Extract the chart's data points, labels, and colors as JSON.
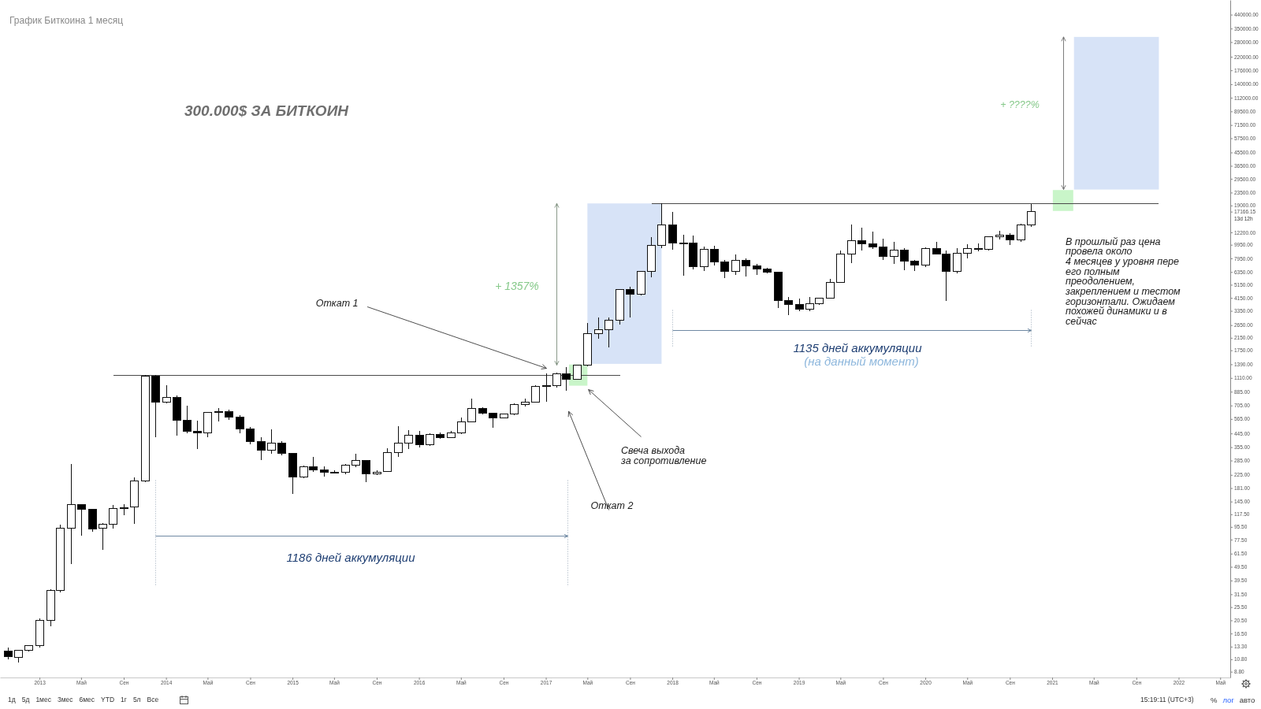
{
  "chart_data": {
    "type": "candlestick",
    "title": "График Биткоина 1 месяц",
    "subtitle": "300.000$ ЗА БИТКОИН",
    "x": [
      "2012-10",
      "2012-11",
      "2012-12",
      "2013-01",
      "2013-02",
      "2013-03",
      "2013-04",
      "2013-05",
      "2013-06",
      "2013-07",
      "2013-08",
      "2013-09",
      "2013-10",
      "2013-11",
      "2013-12",
      "2014-01",
      "2014-02",
      "2014-03",
      "2014-04",
      "2014-05",
      "2014-06",
      "2014-07",
      "2014-08",
      "2014-09",
      "2014-10",
      "2014-11",
      "2014-12",
      "2015-01",
      "2015-02",
      "2015-03",
      "2015-04",
      "2015-05",
      "2015-06",
      "2015-07",
      "2015-08",
      "2015-09",
      "2015-10",
      "2015-11",
      "2015-12",
      "2016-01",
      "2016-02",
      "2016-03",
      "2016-04",
      "2016-05",
      "2016-06",
      "2016-07",
      "2016-08",
      "2016-09",
      "2016-10",
      "2016-11",
      "2016-12",
      "2017-01",
      "2017-02",
      "2017-03",
      "2017-04",
      "2017-05",
      "2017-06",
      "2017-07",
      "2017-08",
      "2017-09",
      "2017-10",
      "2017-11",
      "2017-12",
      "2018-01",
      "2018-02",
      "2018-03",
      "2018-04",
      "2018-05",
      "2018-06",
      "2018-07",
      "2018-08",
      "2018-09",
      "2018-10",
      "2018-11",
      "2018-12",
      "2019-01",
      "2019-02",
      "2019-03",
      "2019-04",
      "2019-05",
      "2019-06",
      "2019-07",
      "2019-08",
      "2019-09",
      "2019-10",
      "2019-11",
      "2019-12",
      "2020-01",
      "2020-02",
      "2020-03",
      "2020-04",
      "2020-05",
      "2020-06",
      "2020-07",
      "2020-08",
      "2020-09",
      "2020-10",
      "2020-11"
    ],
    "ohlc": [
      [
        12.3,
        13.1,
        10.8,
        11.3
      ],
      [
        11.2,
        12.6,
        10.2,
        12.5
      ],
      [
        12.5,
        13.6,
        12.2,
        13.6
      ],
      [
        13.6,
        21.3,
        13.1,
        20.5
      ],
      [
        20.5,
        34.2,
        18.7,
        33.5
      ],
      [
        33.5,
        98.7,
        32.4,
        93.8
      ],
      [
        93.8,
        270,
        51.6,
        138
      ],
      [
        138,
        139,
        83,
        128
      ],
      [
        128,
        129,
        87.8,
        92.5
      ],
      [
        93,
        102,
        65.5,
        99.6
      ],
      [
        100,
        137,
        92.5,
        130
      ],
      [
        131,
        138,
        116,
        130
      ],
      [
        132,
        215,
        100,
        204
      ],
      [
        204,
        1163,
        199,
        1150
      ],
      [
        1150,
        1163,
        417,
        745
      ],
      [
        745,
        990,
        735,
        802
      ],
      [
        802,
        829,
        430,
        550
      ],
      [
        550,
        700,
        445,
        459
      ],
      [
        459,
        550,
        346,
        447
      ],
      [
        447,
        630,
        416,
        627
      ],
      [
        627,
        677,
        540,
        640
      ],
      [
        640,
        660,
        557,
        582
      ],
      [
        582,
        600,
        445,
        479
      ],
      [
        479,
        496,
        370,
        391
      ],
      [
        388,
        417,
        288,
        339
      ],
      [
        339,
        474,
        320,
        378
      ],
      [
        378,
        390,
        311,
        321
      ],
      [
        321,
        323,
        164,
        218
      ],
      [
        217,
        263,
        213,
        256
      ],
      [
        256,
        301,
        237,
        245
      ],
      [
        245,
        260,
        218,
        236
      ],
      [
        236,
        241,
        229,
        234
      ],
      [
        234,
        270,
        226,
        264
      ],
      [
        264,
        317,
        256,
        285
      ],
      [
        285,
        286,
        199,
        230
      ],
      [
        230,
        244,
        225,
        236
      ],
      [
        237,
        350,
        235,
        324
      ],
      [
        324,
        500,
        301,
        380
      ],
      [
        380,
        471,
        345,
        430
      ],
      [
        430,
        463,
        354,
        372
      ],
      [
        372,
        449,
        362,
        437
      ],
      [
        437,
        455,
        405,
        418
      ],
      [
        418,
        463,
        414,
        449
      ],
      [
        449,
        576,
        441,
        537
      ],
      [
        537,
        787,
        534,
        671
      ],
      [
        671,
        687,
        606,
        621
      ],
      [
        621,
        624,
        490,
        576
      ],
      [
        576,
        617,
        574,
        610
      ],
      [
        610,
        728,
        605,
        712
      ],
      [
        712,
        787,
        695,
        747
      ],
      [
        747,
        980,
        740,
        970
      ],
      [
        970,
        1189,
        754,
        980
      ],
      [
        980,
        1214,
        946,
        1189
      ],
      [
        1189,
        1323,
        896,
        1089
      ],
      [
        1089,
        1370,
        1080,
        1365
      ],
      [
        1365,
        2761,
        1350,
        2294
      ],
      [
        2294,
        2985,
        2128,
        2447
      ],
      [
        2447,
        2985,
        1830,
        2860
      ],
      [
        2860,
        4760,
        2680,
        4744
      ],
      [
        4744,
        4955,
        3013,
        4385
      ],
      [
        4385,
        6450,
        4300,
        6415
      ],
      [
        6415,
        11250,
        5800,
        9877
      ],
      [
        9877,
        19700,
        9400,
        13850
      ],
      [
        13850,
        17140,
        9180,
        10200
      ],
      [
        10200,
        11750,
        5940,
        10300
      ],
      [
        10300,
        11620,
        6610,
        6935
      ],
      [
        6935,
        9620,
        6470,
        9190
      ],
      [
        9190,
        9810,
        7050,
        7527
      ],
      [
        7527,
        7770,
        5760,
        6415
      ],
      [
        6415,
        8430,
        6080,
        7730
      ],
      [
        7730,
        7960,
        5900,
        7050
      ],
      [
        7050,
        7300,
        6080,
        6645
      ],
      [
        6645,
        6840,
        6210,
        6337
      ],
      [
        6337,
        6400,
        3500,
        3987
      ],
      [
        3987,
        4220,
        3140,
        3736
      ],
      [
        3736,
        4110,
        3340,
        3430
      ],
      [
        3430,
        4220,
        3340,
        3785
      ],
      [
        3785,
        4150,
        3700,
        4111
      ],
      [
        4111,
        5640,
        4080,
        5331
      ],
      [
        5331,
        9075,
        5330,
        8570
      ],
      [
        8570,
        13800,
        7400,
        10690
      ],
      [
        10690,
        13110,
        9075,
        10100
      ],
      [
        10100,
        12280,
        9320,
        9590
      ],
      [
        9590,
        10925,
        7725,
        8245
      ],
      [
        8245,
        10420,
        7240,
        9075
      ],
      [
        9075,
        9370,
        6560,
        7568
      ],
      [
        7568,
        7770,
        6470,
        7145
      ],
      [
        7145,
        9500,
        6900,
        9350
      ],
      [
        9350,
        10470,
        8540,
        8570
      ],
      [
        8570,
        9075,
        3937,
        6415
      ],
      [
        6415,
        9370,
        6200,
        8610
      ],
      [
        8610,
        10070,
        8000,
        9386
      ],
      [
        9386,
        10200,
        8900,
        9200
      ],
      [
        9200,
        11360,
        9050,
        11360
      ],
      [
        11360,
        12470,
        10880,
        11660
      ],
      [
        11660,
        12030,
        9960,
        10790
      ],
      [
        10790,
        14060,
        10500,
        13800
      ],
      [
        13800,
        19500,
        13400,
        17166.15
      ]
    ],
    "colors": [
      "#000000",
      "#ffffff",
      "#ffffff",
      "#ffffff",
      "#ffffff",
      "#ffffff",
      "#ffffff",
      "#000000",
      "#000000",
      "#ffffff",
      "#ffffff",
      "#000000",
      "#ffffff",
      "#ffffff",
      "#000000",
      "#ffffff",
      "#000000",
      "#000000",
      "#000000",
      "#ffffff",
      "#ffffff",
      "#000000",
      "#000000",
      "#000000",
      "#000000",
      "#ffffff",
      "#000000",
      "#000000",
      "#ffffff",
      "#000000",
      "#000000",
      "#000000",
      "#ffffff",
      "#ffffff",
      "#000000",
      "#ffffff",
      "#ffffff",
      "#ffffff",
      "#ffffff",
      "#000000",
      "#ffffff",
      "#000000",
      "#ffffff",
      "#ffffff",
      "#ffffff",
      "#000000",
      "#000000",
      "#ffffff",
      "#ffffff",
      "#ffffff",
      "#ffffff",
      "#ffffff",
      "#ffffff",
      "#000000",
      "#ffffff",
      "#ffffff",
      "#ffffff",
      "#ffffff",
      "#ffffff",
      "#000000",
      "#ffffff",
      "#ffffff",
      "#ffffff",
      "#000000",
      "#ffffff",
      "#000000",
      "#ffffff",
      "#000000",
      "#000000",
      "#ffffff",
      "#000000",
      "#000000",
      "#000000",
      "#000000",
      "#000000",
      "#000000",
      "#ffffff",
      "#ffffff",
      "#ffffff",
      "#ffffff",
      "#ffffff",
      "#000000",
      "#000000",
      "#000000",
      "#ffffff",
      "#000000",
      "#000000",
      "#ffffff",
      "#000000",
      "#000000",
      "#ffffff",
      "#ffffff",
      "#000000",
      "#ffffff",
      "#ffffff",
      "#000000",
      "#ffffff",
      "#ffffff"
    ],
    "xlim": [
      "2012-09-09",
      "2022-05-30"
    ],
    "ylim": [
      8,
      560000
    ],
    "log": "y",
    "xticks": [
      {
        "value": "2013",
        "label": "2013"
      },
      {
        "value": "2013-05",
        "label": "Май"
      },
      {
        "value": "2013-09",
        "label": "Сен"
      },
      {
        "value": "2014",
        "label": "2014"
      },
      {
        "value": "2014-05",
        "label": "Май"
      },
      {
        "value": "2014-09",
        "label": "Сен"
      },
      {
        "value": "2015",
        "label": "2015"
      },
      {
        "value": "2015-05",
        "label": "Май"
      },
      {
        "value": "2015-09",
        "label": "Сен"
      },
      {
        "value": "2016",
        "label": "2016"
      },
      {
        "value": "2016-05",
        "label": "Май"
      },
      {
        "value": "2016-09",
        "label": "Сен"
      },
      {
        "value": "2017",
        "label": "2017"
      },
      {
        "value": "2017-05",
        "label": "Май"
      },
      {
        "value": "2017-09",
        "label": "Сен"
      },
      {
        "value": "2018",
        "label": "2018"
      },
      {
        "value": "2018-05",
        "label": "Май"
      },
      {
        "value": "2018-09",
        "label": "Сен"
      },
      {
        "value": "2019",
        "label": "2019"
      },
      {
        "value": "2019-05",
        "label": "Май"
      },
      {
        "value": "2019-09",
        "label": "Сен"
      },
      {
        "value": "2020",
        "label": "2020"
      },
      {
        "value": "2020-05",
        "label": "Май"
      },
      {
        "value": "2020-09",
        "label": "Сен"
      },
      {
        "value": "2021",
        "label": "2021"
      },
      {
        "value": "2021-05",
        "label": "Май"
      },
      {
        "value": "2021-09",
        "label": "Сен"
      },
      {
        "value": "2022",
        "label": "2022"
      },
      {
        "value": "2022-05",
        "label": "Май"
      }
    ],
    "yticks": [
      {
        "value": 8.8,
        "label": "8.80"
      },
      {
        "value": 10.8,
        "label": "10.80"
      },
      {
        "value": 13.3,
        "label": "13.30"
      },
      {
        "value": 16.5,
        "label": "16.50"
      },
      {
        "value": 20.5,
        "label": "20.50"
      },
      {
        "value": 25.5,
        "label": "25.50"
      },
      {
        "value": 31.5,
        "label": "31.50"
      },
      {
        "value": 39.5,
        "label": "39.50"
      },
      {
        "value": 49.5,
        "label": "49.50"
      },
      {
        "value": 61.5,
        "label": "61.50"
      },
      {
        "value": 77.5,
        "label": "77.50"
      },
      {
        "value": 95.5,
        "label": "95.50"
      },
      {
        "value": 117.5,
        "label": "117.50"
      },
      {
        "value": 145,
        "label": "145.00"
      },
      {
        "value": 181,
        "label": "181.00"
      },
      {
        "value": 225,
        "label": "225.00"
      },
      {
        "value": 285,
        "label": "285.00"
      },
      {
        "value": 355,
        "label": "355.00"
      },
      {
        "value": 445,
        "label": "445.00"
      },
      {
        "value": 565,
        "label": "565.00"
      },
      {
        "value": 705,
        "label": "705.00"
      },
      {
        "value": 885,
        "label": "885.00"
      },
      {
        "value": 1110,
        "label": "1110.00"
      },
      {
        "value": 1390,
        "label": "1390.00"
      },
      {
        "value": 1750,
        "label": "1750.00"
      },
      {
        "value": 2150,
        "label": "2150.00"
      },
      {
        "value": 2650,
        "label": "2650.00"
      },
      {
        "value": 3350,
        "label": "3350.00"
      },
      {
        "value": 4150,
        "label": "4150.00"
      },
      {
        "value": 5150,
        "label": "5150.00"
      },
      {
        "value": 6350,
        "label": "6350.00"
      },
      {
        "value": 7950,
        "label": "7950.00"
      },
      {
        "value": 9950,
        "label": "9950.00"
      },
      {
        "value": 12200,
        "label": "12200.00"
      },
      17166.15,
      {
        "value": 19000,
        "label": "19000.00"
      },
      {
        "value": 23500,
        "label": "23500.00"
      },
      {
        "value": 29500,
        "label": "29500.00"
      },
      {
        "value": 36500,
        "label": "36500.00"
      },
      {
        "value": 45500,
        "label": "45500.00"
      },
      {
        "value": 57500,
        "label": "57500.00"
      },
      {
        "value": 71500,
        "label": "71500.00"
      },
      {
        "value": 89500,
        "label": "89500.00"
      },
      {
        "value": 112000,
        "label": "112000.00"
      },
      {
        "value": 140000,
        "label": "140000.00"
      },
      {
        "value": 176000,
        "label": "176000.00"
      },
      {
        "value": 220000,
        "label": "220000.00"
      },
      {
        "value": 280000,
        "label": "280000.00"
      },
      {
        "value": 350000,
        "label": "350000.00"
      },
      {
        "value": 440000,
        "label": "440000.00"
      }
    ],
    "ref_lines": [
      {
        "axis": "y",
        "value": 1160,
        "color": "#4a4a4a"
      },
      {
        "axis": "y",
        "value": 19700,
        "color": "#4a4a4a"
      }
    ],
    "annotations": [
      "Откат 1",
      "Откат 2",
      "Свеча выхода\nза сопротивление",
      "+ 1357%",
      "+ ????%",
      "1186 дней аккумуляции",
      "1135 дней аккумуляции",
      "(на данный момент)",
      "В прошлый раз цена\nпровела около\n4 месяцев у уровня пере\nего полным\nпреодолением,\nзакреплением и тестом\nгоризонтали. Ожидаем\nпохожей динамики и в\nсейчас",
      "1д 5д 1мес 3мес 6мес YTD 1г 5л Все",
      "15:19:11 (UTC+3)",
      "% лог авто",
      "13d 12h"
    ]
  }
}
